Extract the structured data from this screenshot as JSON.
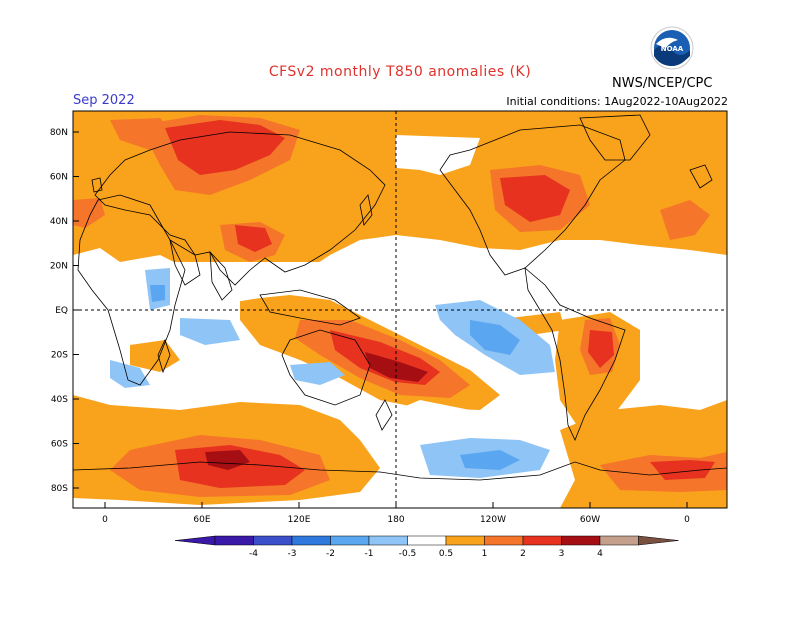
{
  "title": "CFSv2 monthly T850 anomalies (K)",
  "month_label": "Sep 2022",
  "initial_conditions": "Initial conditions: 1Aug2022-10Aug2022",
  "agency": "NWS/NCEP/CPC",
  "logo_text": "NOAA",
  "colors": {
    "title": "#e0322d",
    "month": "#3a3acb",
    "neg4": "#3a18a8",
    "neg3": "#3a4fc9",
    "neg2": "#2f78de",
    "neg1": "#5aa6f0",
    "neg05": "#8fc4f6",
    "pos05": "#f9a21b",
    "pos1": "#f5752a",
    "pos2": "#e6321e",
    "pos3": "#a50f14",
    "pos4": "#c4a08c",
    "pos5": "#7a5040"
  },
  "lat_labels": [
    "80N",
    "60N",
    "40N",
    "20N",
    "EQ",
    "20S",
    "40S",
    "60S",
    "80S"
  ],
  "lon_labels": [
    "0",
    "60E",
    "120E",
    "180",
    "120W",
    "60W",
    "0"
  ],
  "colorbar_labels": [
    "-4",
    "-3",
    "-2",
    "-1",
    "-0.5",
    "0.5",
    "1",
    "2",
    "3",
    "4"
  ],
  "chart_data": {
    "type": "heatmap",
    "title": "CFSv2 monthly T850 anomalies (K)",
    "variable": "850 hPa temperature anomaly",
    "units": "K",
    "valid_month": "Sep 2022",
    "levels": [
      -4,
      -3,
      -2,
      -1,
      -0.5,
      0.5,
      1,
      2,
      3,
      4
    ],
    "anomaly_regions": [
      {
        "region": "Arctic / Northern Eurasia",
        "value": 2
      },
      {
        "region": "Barents-Kara Sea",
        "value": 2
      },
      {
        "region": "Central Asia / Tibet",
        "value": 2
      },
      {
        "region": "Eastern Canada",
        "value": 2
      },
      {
        "region": "Southwest Pacific (SPCZ)",
        "value": 3
      },
      {
        "region": "Central South America",
        "value": 2
      },
      {
        "region": "Southern Ocean 60S-70S Indian sector",
        "value": 3
      },
      {
        "region": "East Antarctic coast",
        "value": 2
      },
      {
        "region": "Equatorial east Pacific",
        "value": -1
      },
      {
        "region": "Southeast Pacific 60S",
        "value": -1
      },
      {
        "region": "Western Indian Ocean",
        "value": -0.5
      },
      {
        "region": "Southern Indian Ocean",
        "value": -0.5
      }
    ]
  }
}
